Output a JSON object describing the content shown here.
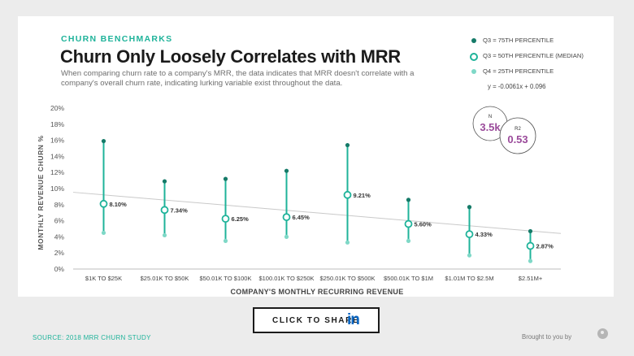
{
  "header": {
    "kicker": "CHURN BENCHMARKS",
    "title": "Churn Only Loosely Correlates with MRR",
    "subtitle": "When comparing churn rate to a company's MRR, the data indicates that MRR doesn't correlate with a company's overall churn rate, indicating lurking variable exist throughout the data."
  },
  "legend": {
    "q75": "Q3 = 75TH PERCENTILE",
    "q50": "Q3 = 50TH PERCENTILE (MEDIAN)",
    "q25": "Q4 = 25TH PERCENTILE",
    "equation": "y = -0.0061x + 0.096"
  },
  "stats": {
    "n_label": "N",
    "n_value": "3.5k",
    "r2_label": "R2",
    "r2_value": "0.53"
  },
  "colors": {
    "accent": "#1fb39a",
    "q75": "#157a68",
    "q25": "#7fd8c7",
    "stat": "#9a4a9a"
  },
  "chart_data": {
    "type": "scatter",
    "title": "Churn Only Loosely Correlates with MRR",
    "xlabel": "COMPANY'S MONTHLY RECURRING REVENUE",
    "ylabel": "MONTHLY REVENUE CHURN %",
    "ylim": [
      0,
      20
    ],
    "y_ticks": [
      "0%",
      "2%",
      "4%",
      "6%",
      "8%",
      "10%",
      "12%",
      "14%",
      "16%",
      "18%",
      "20%"
    ],
    "categories": [
      "$1K TO $25K",
      "$25.01K TO $50K",
      "$50.01K TO $100K",
      "$100.01K TO $250K",
      "$250.01K TO $500K",
      "$500.01K TO $1M",
      "$1.01M TO $2.5M",
      "$2.51M+"
    ],
    "series": [
      {
        "name": "Q3 = 75TH PERCENTILE",
        "values": [
          15.9,
          10.9,
          11.2,
          12.2,
          15.4,
          8.6,
          7.7,
          4.7
        ]
      },
      {
        "name": "Q3 = 50TH PERCENTILE (MEDIAN)",
        "values": [
          8.1,
          7.34,
          6.25,
          6.45,
          9.21,
          5.6,
          4.33,
          2.87
        ]
      },
      {
        "name": "Q4 = 25TH PERCENTILE",
        "values": [
          4.5,
          4.2,
          3.5,
          4.0,
          3.3,
          3.5,
          1.7,
          1.0
        ]
      }
    ],
    "median_labels": [
      "8.10%",
      "7.34%",
      "6.25%",
      "6.45%",
      "9.21%",
      "5.60%",
      "4.33%",
      "2.87%"
    ],
    "trendline": {
      "equation": "y = -0.0061x + 0.096",
      "slope_pct_per_category": -0.61,
      "intercept_pct": 9.6
    },
    "grid": false,
    "legend_position": "top-right"
  },
  "footer": {
    "share_label": "CLICK TO SHARE",
    "linkedin_icon": "in",
    "source": "SOURCE: 2018 MRR CHURN STUDY",
    "brand": "Brought to you by"
  }
}
